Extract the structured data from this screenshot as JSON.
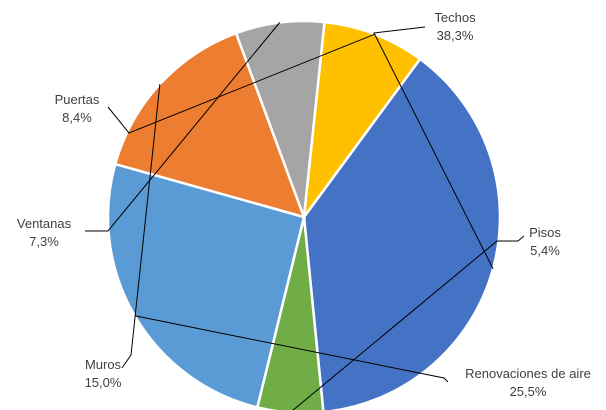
{
  "chart_data": {
    "type": "pie",
    "title": "",
    "start_angle_deg": -53.7,
    "direction": "clockwise",
    "legend": "none",
    "slices": [
      {
        "name": "Techos",
        "value": 38.3,
        "label": "38,3%",
        "color": "#4472C4"
      },
      {
        "name": "Pisos",
        "value": 5.4,
        "label": "5,4%",
        "color": "#70AD47"
      },
      {
        "name": "Renovaciones de aire",
        "value": 25.5,
        "label": "25,5%",
        "color": "#5B9BD5"
      },
      {
        "name": "Muros",
        "value": 15.0,
        "label": "15,0%",
        "color": "#ED7D31"
      },
      {
        "name": "Ventanas",
        "value": 7.3,
        "label": "7,3%",
        "color": "#A5A5A5"
      },
      {
        "name": "Puertas",
        "value": 8.4,
        "label": "8,4%",
        "color": "#FFC000"
      }
    ]
  }
}
